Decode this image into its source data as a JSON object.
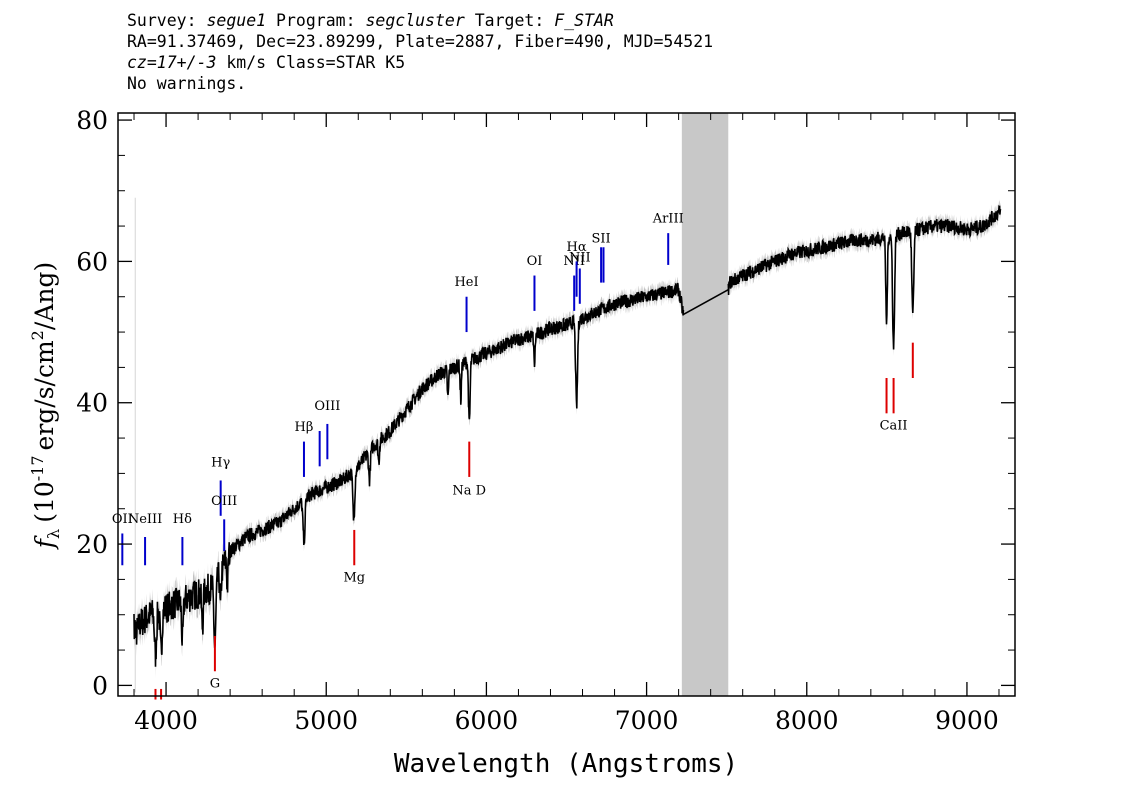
{
  "header": {
    "survey_label": "Survey:",
    "survey": "segue1",
    "program_label": "Program:",
    "program": "segcluster",
    "target_label": "Target:",
    "target": "F_STAR",
    "line2": "RA=91.37469, Dec=23.89299, Plate=2887, Fiber=490, MJD=54521",
    "cz": "cz=17+/-3",
    "cz_rest": "km/s Class=STAR K5",
    "warnings": "No warnings."
  },
  "chart_data": {
    "type": "line",
    "xlabel": "Wavelength (Angstroms)",
    "ylabel_prefix": "f",
    "ylabel_sub": "λ",
    "ylabel_main": "(10",
    "ylabel_exp": "-17",
    "ylabel_units": "erg/s/cm",
    "ylabel_sq": "2",
    "ylabel_end": "/Ang)",
    "xlim": [
      3700,
      9300
    ],
    "ylim": [
      -1.5,
      81
    ],
    "x_ticks": [
      4000,
      5000,
      6000,
      7000,
      8000,
      9000
    ],
    "y_ticks": [
      0,
      20,
      40,
      60,
      80
    ],
    "x_tick_labels": [
      "4000",
      "5000",
      "6000",
      "7000",
      "8000",
      "9000"
    ],
    "y_tick_labels": [
      "0",
      "20",
      "40",
      "60",
      "80"
    ],
    "masked_region": [
      7220,
      7510
    ],
    "colors": {
      "emission": "#0000cc",
      "absorption": "#dd0000",
      "spectrum": "#000000",
      "error": "#c0c0c0",
      "mask": "#c8c8c8"
    },
    "continuum_nodes": [
      [
        3800,
        8
      ],
      [
        3900,
        10
      ],
      [
        4000,
        11
      ],
      [
        4100,
        12
      ],
      [
        4200,
        13
      ],
      [
        4300,
        14
      ],
      [
        4400,
        19
      ],
      [
        4500,
        21
      ],
      [
        4600,
        22
      ],
      [
        4700,
        23
      ],
      [
        4800,
        25
      ],
      [
        4900,
        27
      ],
      [
        5000,
        28
      ],
      [
        5100,
        29
      ],
      [
        5200,
        31
      ],
      [
        5300,
        34
      ],
      [
        5400,
        36
      ],
      [
        5500,
        39
      ],
      [
        5600,
        42
      ],
      [
        5700,
        44
      ],
      [
        5800,
        45
      ],
      [
        5900,
        46
      ],
      [
        6000,
        47
      ],
      [
        6100,
        48
      ],
      [
        6200,
        49
      ],
      [
        6300,
        49.5
      ],
      [
        6400,
        50.5
      ],
      [
        6500,
        51
      ],
      [
        6600,
        52
      ],
      [
        6700,
        53
      ],
      [
        6800,
        54
      ],
      [
        6900,
        54.5
      ],
      [
        7000,
        55
      ],
      [
        7100,
        55.5
      ],
      [
        7200,
        56
      ],
      [
        7230,
        52.5
      ],
      [
        7510,
        56
      ],
      [
        7520,
        57
      ],
      [
        7600,
        58
      ],
      [
        7700,
        59
      ],
      [
        7800,
        60
      ],
      [
        7900,
        61
      ],
      [
        8000,
        61.5
      ],
      [
        8100,
        62
      ],
      [
        8200,
        62.5
      ],
      [
        8300,
        63
      ],
      [
        8400,
        63
      ],
      [
        8500,
        63.5
      ],
      [
        8600,
        64
      ],
      [
        8700,
        64.5
      ],
      [
        8800,
        65
      ],
      [
        8900,
        65
      ],
      [
        9000,
        64.5
      ],
      [
        9100,
        65
      ],
      [
        9200,
        67
      ]
    ],
    "absorption_features": [
      [
        3934,
        6,
        6
      ],
      [
        3969,
        6,
        6
      ],
      [
        4102,
        6,
        5
      ],
      [
        4227,
        5,
        5
      ],
      [
        4305,
        9,
        6
      ],
      [
        4340,
        5,
        4
      ],
      [
        4383,
        4,
        4
      ],
      [
        4861,
        6,
        6
      ],
      [
        5172,
        7,
        6
      ],
      [
        5270,
        4,
        5
      ],
      [
        5328,
        3,
        4
      ],
      [
        5760,
        4,
        4
      ],
      [
        5840,
        5,
        4
      ],
      [
        5893,
        9,
        5
      ],
      [
        6300,
        4,
        4
      ],
      [
        6563,
        12,
        6
      ],
      [
        8498,
        12,
        5
      ],
      [
        8542,
        16,
        6
      ],
      [
        8662,
        12,
        6
      ]
    ],
    "lines": [
      {
        "label": "OII",
        "wave": 3727,
        "kind": "emission",
        "y0": 17,
        "y1": 21.5,
        "label_y": 23
      },
      {
        "label": "NeIII",
        "wave": 3869,
        "kind": "emission",
        "y0": 17,
        "y1": 21,
        "label_y": 23
      },
      {
        "label": "Hδ",
        "wave": 4102,
        "kind": "emission",
        "y0": 17,
        "y1": 21,
        "label_y": 23
      },
      {
        "label": "Hγ",
        "wave": 4341,
        "kind": "emission",
        "y0": 24,
        "y1": 29,
        "label_y": 31
      },
      {
        "label": "OIII",
        "wave": 4363,
        "kind": "emission",
        "y0": 19,
        "y1": 23.5,
        "label_y": 25.5
      },
      {
        "label": "Hβ",
        "wave": 4861,
        "kind": "emission",
        "y0": 29.5,
        "y1": 34.5,
        "label_y": 36
      },
      {
        "label": "",
        "wave": 4959,
        "kind": "emission",
        "y0": 31,
        "y1": 36,
        "label_y": 0
      },
      {
        "label": "OIII",
        "wave": 5007,
        "kind": "emission",
        "y0": 32,
        "y1": 37,
        "label_y": 39
      },
      {
        "label": "HeI",
        "wave": 5876,
        "kind": "emission",
        "y0": 50,
        "y1": 55,
        "label_y": 56.5
      },
      {
        "label": "OI",
        "wave": 6300,
        "kind": "emission",
        "y0": 53,
        "y1": 58,
        "label_y": 59.5
      },
      {
        "label": "NII",
        "wave": 6548,
        "kind": "emission",
        "y0": 53,
        "y1": 58,
        "label_y": 59.5
      },
      {
        "label": "Hα",
        "wave": 6563,
        "kind": "emission",
        "y0": 55,
        "y1": 60,
        "label_y": 61.5
      },
      {
        "label": "NII",
        "wave": 6583,
        "kind": "emission",
        "y0": 54,
        "y1": 59,
        "label_y": 60
      },
      {
        "label": "SII",
        "wave": 6716,
        "kind": "emission",
        "y0": 57,
        "y1": 62,
        "label_y": 62.7
      },
      {
        "label": "",
        "wave": 6731,
        "kind": "emission",
        "y0": 57,
        "y1": 62,
        "label_y": 0
      },
      {
        "label": "ArIII",
        "wave": 7135,
        "kind": "emission",
        "y0": 59.5,
        "y1": 64,
        "label_y": 65.5
      },
      {
        "label": "",
        "wave": 3934,
        "kind": "absorption",
        "y0": -2,
        "y1": -0.5,
        "label_y": 0
      },
      {
        "label": "",
        "wave": 3969,
        "kind": "absorption",
        "y0": -2,
        "y1": -0.5,
        "label_y": 0
      },
      {
        "label": "G",
        "wave": 4305,
        "kind": "absorption",
        "y0": 2,
        "y1": 7,
        "label_y": -0.3
      },
      {
        "label": "Mg",
        "wave": 5175,
        "kind": "absorption",
        "y0": 17,
        "y1": 22,
        "label_y": 14.7
      },
      {
        "label": "Na D",
        "wave": 5893,
        "kind": "absorption",
        "y0": 29.5,
        "y1": 34.5,
        "label_y": 27
      },
      {
        "label": "",
        "wave": 8498,
        "kind": "absorption",
        "y0": 38.5,
        "y1": 43.5,
        "label_y": 0
      },
      {
        "label": "CaII",
        "wave": 8542,
        "kind": "absorption",
        "y0": 38.5,
        "y1": 43.5,
        "label_y": 36.2
      },
      {
        "label": "",
        "wave": 8662,
        "kind": "absorption",
        "y0": 43.5,
        "y1": 48.5,
        "label_y": 0
      }
    ]
  }
}
